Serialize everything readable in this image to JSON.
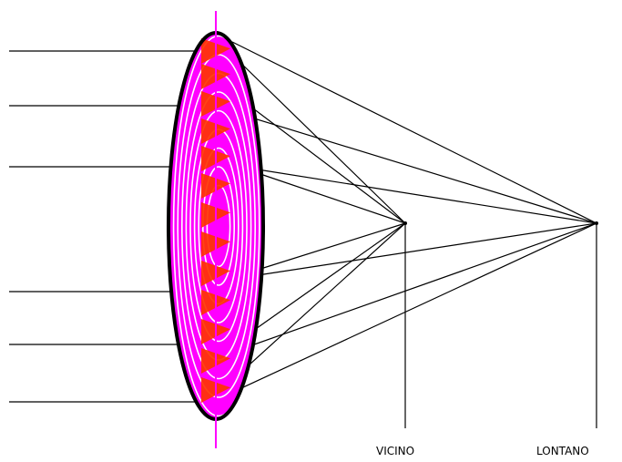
{
  "labels": {
    "near": "VICINO",
    "far": "LONTANO"
  },
  "colors": {
    "lens_fill": "#ff00ff",
    "rings": "#ffffff",
    "prisms": "#ff3300",
    "axis": "#ff00ff",
    "rays": "#000000",
    "outline": "#000000"
  },
  "icons": {
    "lens": "multifocal-diffractive-lens-icon"
  }
}
